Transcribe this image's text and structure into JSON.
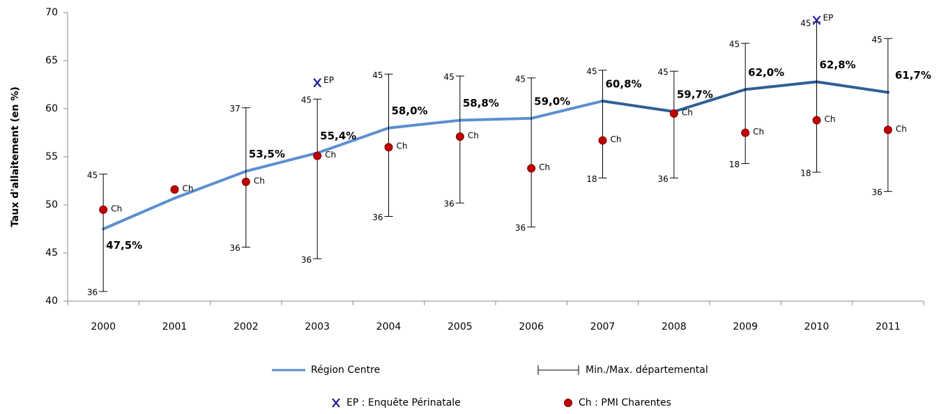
{
  "chart_data": {
    "type": "line",
    "y_label": "Taux d'allaitement (en %)",
    "categories": [
      "2000",
      "2001",
      "2002",
      "2003",
      "2004",
      "2005",
      "2006",
      "2007",
      "2008",
      "2009",
      "2010",
      "2011"
    ],
    "ylim": [
      40,
      70
    ],
    "yticks": [
      40,
      45,
      50,
      55,
      60,
      65,
      70
    ],
    "series": [
      {
        "name": "Région Centre",
        "type": "line",
        "values": [
          47.5,
          50.7,
          53.5,
          55.4,
          58.0,
          58.8,
          59.0,
          60.8,
          59.7,
          62.0,
          62.8,
          61.7
        ],
        "value_labels": [
          "47,5%",
          null,
          "53,5%",
          "55,4%",
          "58,0%",
          "58,8%",
          "59,0%",
          "60,8%",
          "59,7%",
          "62,0%",
          "62,8%",
          "61,7%"
        ],
        "label_colors": [
          "#5b8fd0",
          "#5b8fd0",
          "#5b8fd0",
          "#5b8fd0",
          "#5b8fd0",
          "#5b8fd0",
          "#5b8fd0",
          "#5b8fd0",
          "#2f5f96",
          "#2f5f96",
          "#2f5f96",
          "#2f5f96"
        ]
      },
      {
        "name": "Min./Max. départemental",
        "type": "errorbar",
        "color": "#000000",
        "max": [
          53.2,
          null,
          60.1,
          61.0,
          63.6,
          63.4,
          63.2,
          64.0,
          63.9,
          66.8,
          69.0,
          67.3
        ],
        "min": [
          41.0,
          null,
          45.6,
          44.4,
          48.8,
          50.2,
          47.7,
          52.8,
          52.8,
          54.3,
          53.4,
          51.4
        ],
        "max_labels": [
          "45",
          null,
          "37",
          "45",
          "45",
          "45",
          "45",
          "45",
          "45",
          "45",
          "45",
          "45"
        ],
        "min_labels": [
          "36",
          null,
          "36",
          "36",
          "36",
          "36",
          "36",
          "18",
          "36",
          "18",
          "18",
          "36"
        ]
      },
      {
        "name": "EP : Enquête Périnatale",
        "type": "x-marker",
        "color": "#1f1fa0",
        "point_label": "EP",
        "values": [
          null,
          null,
          null,
          62.7,
          null,
          null,
          null,
          null,
          null,
          null,
          69.2,
          null
        ]
      },
      {
        "name": "Ch : PMI Charentes",
        "type": "dot",
        "color": "#c00000",
        "point_label": "Ch",
        "values": [
          49.5,
          51.6,
          52.4,
          55.1,
          56.0,
          57.1,
          53.8,
          56.7,
          59.5,
          57.5,
          58.8,
          57.8
        ]
      }
    ]
  }
}
